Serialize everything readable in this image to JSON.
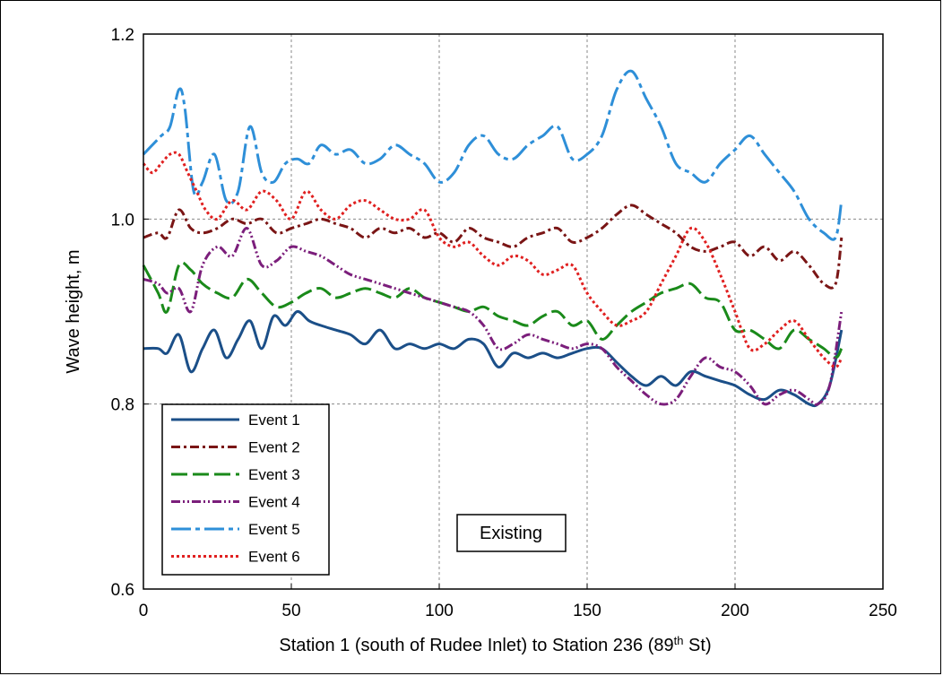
{
  "chart_data": {
    "type": "line",
    "xlabel_parts": [
      "Station 1 (south of Rudee Inlet) to Station 236 (89",
      "th",
      " St)"
    ],
    "ylabel": "Wave height, m",
    "xlim": [
      0,
      250
    ],
    "ylim": [
      0.6,
      1.2
    ],
    "xticks": [
      "0",
      "50",
      "100",
      "150",
      "200",
      "250"
    ],
    "yticks": [
      "0.6",
      "0.8",
      "1.0",
      "1.2"
    ],
    "grid": true,
    "legend_position": "bottom-left",
    "annotation": "Existing",
    "series": [
      {
        "name": "Event 1",
        "color": "#1b4f88",
        "dash": "",
        "x": [
          0,
          5,
          8,
          12,
          16,
          20,
          24,
          28,
          32,
          36,
          40,
          44,
          48,
          52,
          56,
          60,
          65,
          70,
          75,
          80,
          85,
          90,
          95,
          100,
          105,
          110,
          115,
          120,
          125,
          130,
          135,
          140,
          145,
          150,
          155,
          160,
          165,
          170,
          175,
          180,
          185,
          190,
          195,
          200,
          205,
          210,
          215,
          220,
          225,
          228,
          232,
          236
        ],
        "values": [
          0.86,
          0.86,
          0.855,
          0.875,
          0.835,
          0.86,
          0.88,
          0.85,
          0.87,
          0.89,
          0.86,
          0.895,
          0.885,
          0.9,
          0.89,
          0.885,
          0.88,
          0.875,
          0.865,
          0.88,
          0.86,
          0.865,
          0.86,
          0.865,
          0.86,
          0.87,
          0.865,
          0.84,
          0.855,
          0.85,
          0.855,
          0.85,
          0.855,
          0.86,
          0.86,
          0.845,
          0.83,
          0.82,
          0.83,
          0.82,
          0.835,
          0.83,
          0.825,
          0.82,
          0.81,
          0.805,
          0.815,
          0.81,
          0.8,
          0.8,
          0.82,
          0.88
        ]
      },
      {
        "name": "Event 2",
        "color": "#7a1515",
        "dash": "10,4,3,4",
        "x": [
          0,
          5,
          8,
          12,
          16,
          20,
          25,
          30,
          35,
          40,
          45,
          50,
          55,
          60,
          65,
          70,
          75,
          80,
          85,
          90,
          95,
          100,
          105,
          110,
          115,
          120,
          125,
          130,
          135,
          140,
          145,
          150,
          155,
          160,
          165,
          170,
          175,
          180,
          185,
          190,
          195,
          200,
          205,
          210,
          215,
          220,
          225,
          230,
          234,
          236
        ],
        "values": [
          0.98,
          0.985,
          0.98,
          1.01,
          0.99,
          0.985,
          0.99,
          1.0,
          0.995,
          1.0,
          0.985,
          0.99,
          0.995,
          1.0,
          0.995,
          0.99,
          0.98,
          0.99,
          0.985,
          0.99,
          0.98,
          0.985,
          0.975,
          0.99,
          0.98,
          0.975,
          0.97,
          0.98,
          0.985,
          0.99,
          0.975,
          0.98,
          0.99,
          1.005,
          1.015,
          1.005,
          0.995,
          0.985,
          0.97,
          0.965,
          0.97,
          0.975,
          0.96,
          0.97,
          0.955,
          0.965,
          0.95,
          0.93,
          0.93,
          0.98
        ]
      },
      {
        "name": "Event 3",
        "color": "#1a8a1a",
        "dash": "18,6",
        "x": [
          0,
          5,
          8,
          12,
          16,
          20,
          25,
          30,
          35,
          40,
          45,
          50,
          55,
          60,
          65,
          70,
          75,
          80,
          85,
          90,
          95,
          100,
          105,
          110,
          115,
          120,
          125,
          130,
          135,
          140,
          145,
          150,
          155,
          160,
          165,
          170,
          175,
          180,
          185,
          190,
          195,
          200,
          205,
          210,
          215,
          220,
          225,
          230,
          234,
          236
        ],
        "values": [
          0.95,
          0.92,
          0.9,
          0.95,
          0.945,
          0.93,
          0.92,
          0.915,
          0.935,
          0.92,
          0.905,
          0.91,
          0.92,
          0.925,
          0.915,
          0.92,
          0.925,
          0.92,
          0.915,
          0.925,
          0.915,
          0.91,
          0.905,
          0.9,
          0.905,
          0.895,
          0.89,
          0.885,
          0.895,
          0.9,
          0.885,
          0.89,
          0.87,
          0.885,
          0.9,
          0.91,
          0.92,
          0.925,
          0.93,
          0.915,
          0.91,
          0.88,
          0.88,
          0.87,
          0.86,
          0.88,
          0.87,
          0.86,
          0.85,
          0.86
        ]
      },
      {
        "name": "Event 4",
        "color": "#7b1e7b",
        "dash": "10,3,2,3,2,3",
        "x": [
          0,
          5,
          8,
          12,
          16,
          20,
          25,
          30,
          35,
          40,
          45,
          50,
          55,
          60,
          65,
          70,
          75,
          80,
          85,
          90,
          95,
          100,
          105,
          110,
          115,
          120,
          125,
          130,
          135,
          140,
          145,
          150,
          155,
          160,
          165,
          170,
          175,
          180,
          185,
          190,
          195,
          200,
          205,
          210,
          215,
          220,
          225,
          228,
          232,
          236
        ],
        "values": [
          0.935,
          0.93,
          0.92,
          0.925,
          0.9,
          0.95,
          0.97,
          0.96,
          0.99,
          0.95,
          0.955,
          0.97,
          0.965,
          0.96,
          0.95,
          0.94,
          0.935,
          0.93,
          0.925,
          0.92,
          0.915,
          0.91,
          0.905,
          0.9,
          0.885,
          0.86,
          0.865,
          0.875,
          0.87,
          0.865,
          0.86,
          0.865,
          0.86,
          0.84,
          0.825,
          0.81,
          0.8,
          0.805,
          0.83,
          0.85,
          0.84,
          0.835,
          0.82,
          0.8,
          0.81,
          0.815,
          0.805,
          0.8,
          0.82,
          0.9
        ]
      },
      {
        "name": "Event 5",
        "color": "#2e8fd8",
        "dash": "22,5,5,5",
        "x": [
          0,
          3,
          6,
          9,
          12,
          14,
          17,
          20,
          24,
          28,
          32,
          36,
          40,
          44,
          48,
          52,
          56,
          60,
          65,
          70,
          75,
          80,
          85,
          90,
          95,
          100,
          105,
          110,
          115,
          120,
          125,
          130,
          135,
          140,
          145,
          150,
          155,
          160,
          165,
          170,
          175,
          180,
          185,
          190,
          195,
          200,
          205,
          210,
          215,
          220,
          225,
          230,
          234,
          236
        ],
        "values": [
          1.07,
          1.08,
          1.09,
          1.1,
          1.14,
          1.12,
          1.03,
          1.04,
          1.07,
          1.02,
          1.03,
          1.1,
          1.05,
          1.04,
          1.06,
          1.065,
          1.06,
          1.08,
          1.07,
          1.075,
          1.06,
          1.065,
          1.08,
          1.07,
          1.06,
          1.04,
          1.05,
          1.08,
          1.09,
          1.07,
          1.065,
          1.08,
          1.09,
          1.1,
          1.065,
          1.07,
          1.09,
          1.14,
          1.16,
          1.13,
          1.1,
          1.06,
          1.05,
          1.04,
          1.06,
          1.075,
          1.09,
          1.07,
          1.05,
          1.03,
          1.0,
          0.985,
          0.98,
          1.02
        ]
      },
      {
        "name": "Event 6",
        "color": "#e02020",
        "dash": "3,3",
        "x": [
          0,
          3,
          6,
          9,
          12,
          15,
          18,
          21,
          25,
          30,
          35,
          40,
          45,
          50,
          55,
          60,
          65,
          70,
          75,
          80,
          85,
          90,
          95,
          100,
          105,
          110,
          115,
          120,
          125,
          130,
          135,
          140,
          145,
          150,
          155,
          160,
          165,
          170,
          175,
          180,
          185,
          190,
          195,
          200,
          205,
          210,
          215,
          220,
          225,
          230,
          234,
          236
        ],
        "values": [
          1.06,
          1.05,
          1.06,
          1.07,
          1.07,
          1.05,
          1.03,
          1.01,
          1.0,
          1.02,
          1.01,
          1.03,
          1.02,
          1.0,
          1.03,
          1.01,
          1.0,
          1.015,
          1.02,
          1.01,
          1.0,
          1.0,
          1.01,
          0.98,
          0.97,
          0.975,
          0.96,
          0.95,
          0.96,
          0.955,
          0.94,
          0.945,
          0.95,
          0.92,
          0.9,
          0.885,
          0.89,
          0.9,
          0.93,
          0.96,
          0.99,
          0.975,
          0.94,
          0.9,
          0.86,
          0.865,
          0.88,
          0.89,
          0.87,
          0.85,
          0.84,
          0.85
        ]
      }
    ]
  }
}
